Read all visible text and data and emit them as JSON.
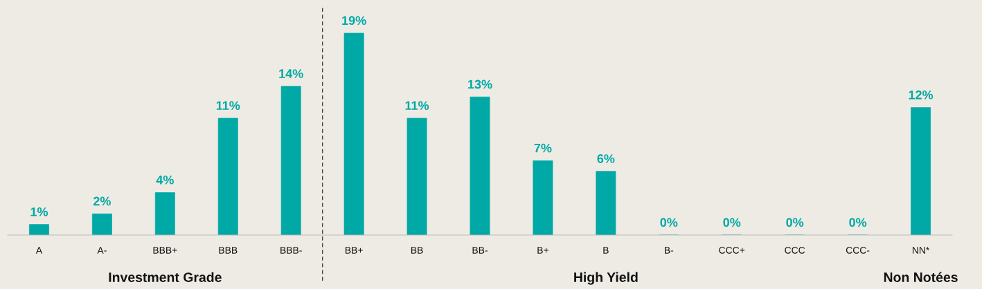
{
  "chart_data": {
    "type": "bar",
    "categories": [
      "A",
      "A-",
      "BBB+",
      "BBB",
      "BBB-",
      "BB+",
      "BB",
      "BB-",
      "B+",
      "B",
      "B-",
      "CCC+",
      "CCC",
      "CCC-",
      "NN*"
    ],
    "values": [
      1,
      2,
      4,
      11,
      14,
      19,
      11,
      13,
      7,
      6,
      0,
      0,
      0,
      0,
      12
    ],
    "color": "#00a9a5",
    "value_labels": [
      "1%",
      "2%",
      "4%",
      "11%",
      "14%",
      "19%",
      "11%",
      "13%",
      "7%",
      "6%",
      "0%",
      "0%",
      "0%",
      "0%",
      "12%"
    ],
    "grid": false,
    "tick_labels": "x",
    "annotations": [
      "Investment Grade",
      "High Yield",
      "Non Notées"
    ]
  }
}
